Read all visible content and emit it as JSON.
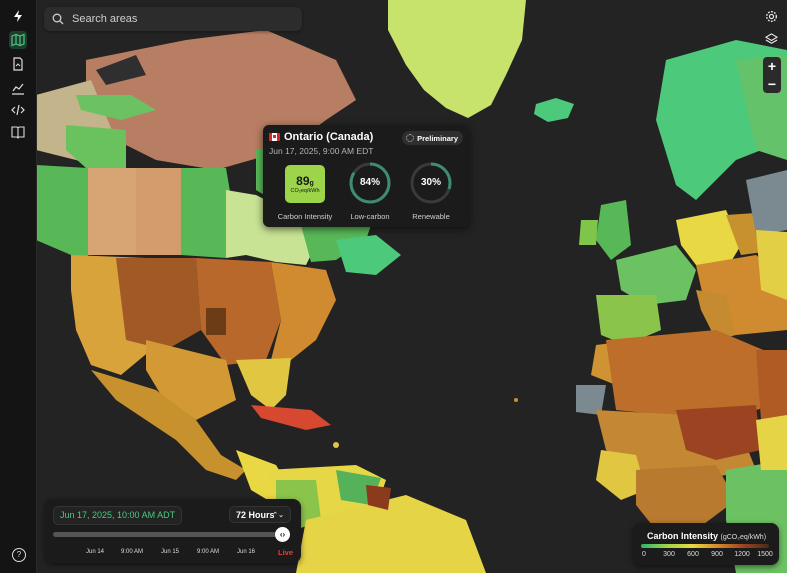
{
  "search": {
    "placeholder": "Search areas"
  },
  "sidebar": {
    "items": [
      {
        "icon": "bolt-logo-icon"
      },
      {
        "icon": "map-icon",
        "active": true
      },
      {
        "icon": "report-icon"
      },
      {
        "icon": "chart-icon"
      },
      {
        "icon": "code-icon"
      },
      {
        "icon": "book-icon"
      }
    ],
    "help_icon": "help-icon"
  },
  "map_controls": {
    "settings_icon": "gear-icon",
    "layers_icon": "layers-icon",
    "zoom_in": "+",
    "zoom_out": "−"
  },
  "zone_tooltip": {
    "zone": "Ontario (Canada)",
    "flag": "canada-flag-icon",
    "datetime": "Jun 17, 2025, 9:00 AM EDT",
    "badge": "Preliminary",
    "carbon_intensity": {
      "value": "89",
      "suffix": "g",
      "unit": "CO₂eq/kWh",
      "label": "Carbon Intensity",
      "color": "#9cd44a"
    },
    "low_carbon": {
      "value": "84%",
      "fraction": 0.84,
      "label": "Low-carbon"
    },
    "renewable": {
      "value": "30%",
      "fraction": 0.3,
      "label": "Renewable"
    }
  },
  "timeline": {
    "current": "Jun 17, 2025, 10:00 AM ADT",
    "range": "72 Hours",
    "ticks": [
      "Jun 14",
      "9:00 AM",
      "Jun 15",
      "9:00 AM",
      "Jun 16"
    ],
    "live_label": "Live",
    "slider_icon": "‹›"
  },
  "legend": {
    "title": "Carbon Intensity",
    "unit": "(gCO₂eq/kWh)",
    "ticks": [
      "0",
      "300",
      "600",
      "900",
      "1200",
      "1500"
    ],
    "colors": [
      "#2fb369",
      "#9cd44a",
      "#e8d843",
      "#d58a2a",
      "#9c4421",
      "#4a2a14"
    ]
  }
}
